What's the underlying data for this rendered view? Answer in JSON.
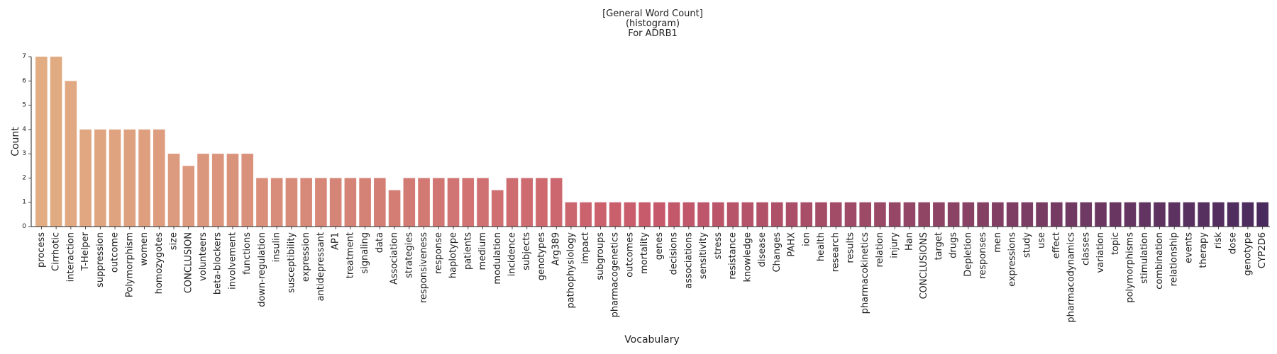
{
  "title": "[General Word Count]",
  "subtitle": "(histogram)",
  "subtitle2": "For ADRB1",
  "chart_data": {
    "type": "bar",
    "xlabel": "Vocabulary",
    "ylabel": "Count",
    "ylim": [
      0,
      7
    ],
    "yticks": [
      0,
      1,
      2,
      3,
      4,
      5,
      6,
      7
    ],
    "grid": false,
    "legend": "none",
    "colors": {
      "start": "#e2ad83",
      "mid": "#c85a6b",
      "end": "#4a2b5e"
    },
    "categories": [
      "process",
      "Cirrhotic",
      "interaction",
      "T-Helper",
      "suppression",
      "outcome",
      "Polymorphism",
      "women",
      "homozygotes",
      "size",
      "CONCLUSION",
      "volunteers",
      "beta-blockers",
      "involvement",
      "functions",
      "down-regulation",
      "insulin",
      "susceptibility",
      "expression",
      "antidepressant",
      "AP1",
      "treatment",
      "signaling",
      "data",
      "Association",
      "strategies",
      "responsiveness",
      "response",
      "haplotype",
      "patients",
      "medium",
      "modulation",
      "incidence",
      "subjects",
      "genotypes",
      "Arg389",
      "pathophysiology",
      "impact",
      "subgroups",
      "pharmacogenetics",
      "outcomes",
      "mortality",
      "genes",
      "decisions",
      "associations",
      "sensitivity",
      "stress",
      "resistance",
      "knowledge",
      "disease",
      "Changes",
      "PAHX",
      "ion",
      "health",
      "research",
      "results",
      "pharmacokinetics",
      "relation",
      "injury",
      "Han",
      "CONCLUSIONS",
      "target",
      "drugs",
      "Depletion",
      "responses",
      "men",
      "expressions",
      "study",
      "use",
      "effect",
      "pharmacodynamics",
      "classes",
      "variation",
      "topic",
      "polymorphisms",
      "stimulation",
      "combination",
      "relationship",
      "events",
      "therapy",
      "risk",
      "dose",
      "genotype",
      "CYP2D6"
    ],
    "values": [
      7,
      7,
      6,
      4,
      4,
      4,
      4,
      4,
      4,
      3,
      2.5,
      3,
      3,
      3,
      3,
      2,
      2,
      2,
      2,
      2,
      2,
      2,
      2,
      2,
      1.5,
      2,
      2,
      2,
      2,
      2,
      2,
      1.5,
      2,
      2,
      2,
      2,
      1,
      1,
      1,
      1,
      1,
      1,
      1,
      1,
      1,
      1,
      1,
      1,
      1,
      1,
      1,
      1,
      1,
      1,
      1,
      1,
      1,
      1,
      1,
      1,
      1,
      1,
      1,
      1,
      1,
      1,
      1,
      1,
      1,
      1,
      1,
      1,
      1,
      1,
      1,
      1,
      1,
      1,
      1,
      1,
      1,
      1,
      1,
      1
    ]
  }
}
